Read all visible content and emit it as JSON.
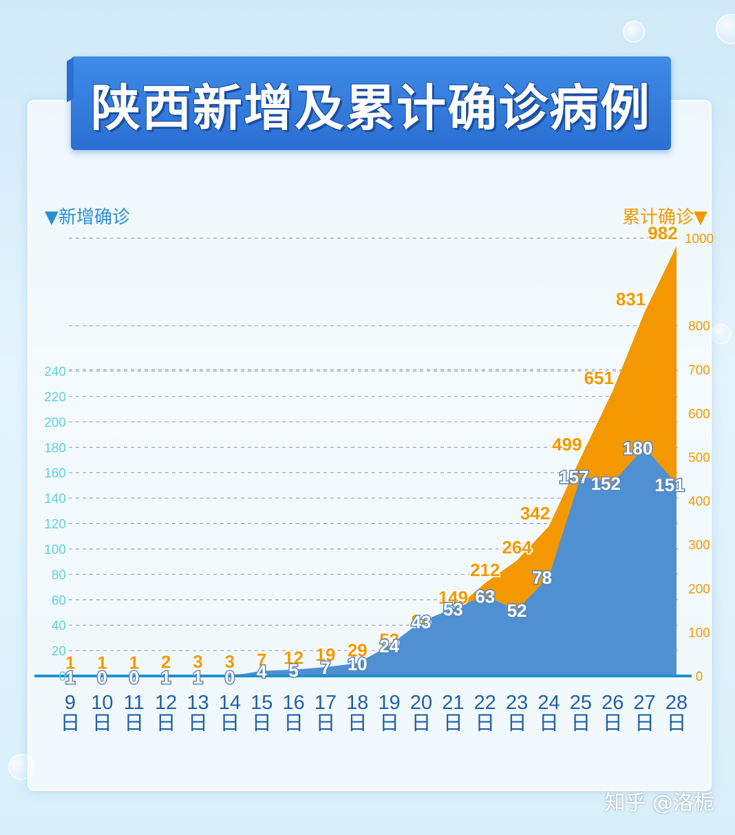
{
  "title": "陕西新增及累计确诊病例",
  "left_axis_label": "▼新增确诊",
  "right_axis_label": "累计确诊▼",
  "watermark": "知乎 @洛栀",
  "colors": {
    "new_cases": "#4f90d2",
    "cumulative": "#f39800",
    "left_tick": "#5fd0e0",
    "right_tick": "#f39800",
    "date": "#1f5fa8"
  },
  "chart_data": {
    "type": "area",
    "x": [
      "9日",
      "10日",
      "11日",
      "12日",
      "13日",
      "14日",
      "15日",
      "16日",
      "17日",
      "18日",
      "19日",
      "20日",
      "21日",
      "22日",
      "23日",
      "24日",
      "25日",
      "26日",
      "27日",
      "28日"
    ],
    "x_numbers": [
      "9",
      "10",
      "11",
      "12",
      "13",
      "14",
      "15",
      "16",
      "17",
      "18",
      "19",
      "20",
      "21",
      "22",
      "23",
      "24",
      "25",
      "26",
      "27",
      "28"
    ],
    "x_suffix": "日",
    "series": [
      {
        "name": "新增确诊",
        "axis": "left",
        "values": [
          1,
          0,
          0,
          1,
          1,
          0,
          4,
          5,
          7,
          10,
          24,
          43,
          53,
          63,
          52,
          78,
          157,
          152,
          180,
          151
        ],
        "labels": [
          "1",
          "0",
          "0",
          "1",
          "1",
          "0",
          "4",
          "5",
          "7",
          "10",
          "24",
          "43",
          "53",
          "63",
          "52",
          "78",
          "157",
          "152",
          "180",
          "151"
        ]
      },
      {
        "name": "累计确诊",
        "axis": "right",
        "values": [
          1,
          1,
          1,
          2,
          3,
          3,
          7,
          12,
          19,
          29,
          53,
          96,
          149,
          212,
          264,
          342,
          499,
          651,
          831,
          982
        ],
        "labels": [
          "1",
          "1",
          "1",
          "2",
          "3",
          "3",
          "7",
          "12",
          "19",
          "29",
          "53",
          "96",
          "149",
          "212",
          "264",
          "342",
          "499",
          "651",
          "831",
          "982"
        ]
      }
    ],
    "left_axis": {
      "ticks": [
        0,
        20,
        40,
        60,
        80,
        100,
        120,
        140,
        160,
        180,
        200,
        220,
        240
      ],
      "tick_labels": [
        "0",
        "20",
        "40",
        "60",
        "80",
        "100",
        "120",
        "140",
        "160",
        "180",
        "200",
        "220",
        "240"
      ],
      "ylim": [
        0,
        240
      ]
    },
    "right_axis": {
      "ticks": [
        0,
        100,
        200,
        300,
        400,
        500,
        600,
        700,
        800,
        1000
      ],
      "tick_labels": [
        "0",
        "100",
        "200",
        "300",
        "400",
        "500",
        "600",
        "700",
        "800",
        "1000"
      ],
      "ylim": [
        0,
        1000
      ]
    },
    "grid": true
  }
}
